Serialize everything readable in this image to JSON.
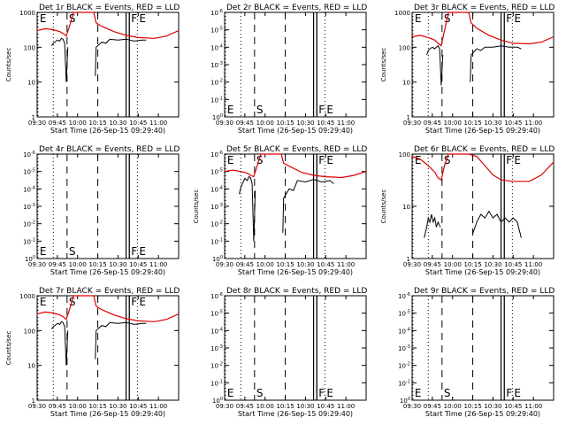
{
  "colors": {
    "events": "#000000",
    "lld": "#dd0000",
    "axes": "#000000",
    "background": "#ffffff"
  },
  "chart_data": [
    {
      "type": "line",
      "scale": "log",
      "ylabel": "Counts/sec",
      "xlabel": "Start Time (26-Sep-15 09:29:40)",
      "title": "Det 1r BLACK = Events, RED = LLD",
      "xlim": [
        9.5,
        11.25
      ],
      "ylim": [
        1,
        1000
      ],
      "x_ticks": [
        "09:30",
        "09:45",
        "10:00",
        "10:15",
        "10:30",
        "10:45",
        "11:00"
      ],
      "y_ticks": [
        "1",
        "10",
        "100",
        "1000"
      ],
      "markers": [
        {
          "label": "E",
          "x": 9.51
        },
        {
          "label": "S",
          "x": 9.87
        },
        {
          "label": "F",
          "x": 10.64
        },
        {
          "label": "E",
          "x": 10.74
        }
      ],
      "series": [
        {
          "color": "red",
          "x": [
            9.5,
            9.6,
            9.7,
            9.78,
            9.82,
            9.86,
            9.9,
            9.95,
            10.05,
            10.2,
            10.23,
            10.3,
            10.45,
            10.6,
            10.75,
            10.95,
            11.1,
            11.25
          ],
          "y": [
            300,
            340,
            320,
            280,
            250,
            210,
            400,
            1000,
            1000,
            1000,
            500,
            400,
            280,
            220,
            190,
            180,
            210,
            300
          ]
        },
        {
          "color": "black",
          "x": [
            9.68,
            9.7,
            9.72,
            9.75,
            9.78,
            9.8,
            9.82,
            9.84,
            9.86,
            9.88
          ],
          "y": [
            110,
            130,
            140,
            160,
            150,
            180,
            170,
            130,
            10,
            100
          ]
        },
        {
          "color": "black",
          "x": [
            10.22,
            10.23,
            10.3,
            10.35,
            10.4,
            10.5,
            10.6,
            10.7,
            10.8,
            10.85
          ],
          "y": [
            15,
            100,
            140,
            130,
            170,
            160,
            170,
            150,
            160,
            160
          ]
        }
      ]
    },
    {
      "type": "line",
      "scale": "log",
      "ylabel": "",
      "xlabel": "Start Time (26-Sep-15 09:29:40)",
      "title": "Det 2r BLACK = Events, RED = LLD",
      "xlim": [
        9.5,
        11.25
      ],
      "ylim": [
        1,
        1000000
      ],
      "x_ticks": [
        "09:30",
        "09:45",
        "10:00",
        "10:15",
        "10:30",
        "10:45",
        "11:00"
      ],
      "y_ticks": [
        "10^0",
        "10^-1",
        "10^-2",
        "10^-3",
        "10^-4",
        "10^-5",
        "10^-6"
      ],
      "markers": [
        {
          "label": "E",
          "x": 9.51
        },
        {
          "label": "S",
          "x": 9.87
        },
        {
          "label": "F",
          "x": 10.64
        },
        {
          "label": "E",
          "x": 10.74
        }
      ],
      "series": []
    },
    {
      "type": "line",
      "scale": "log",
      "ylabel": "Counts/sec",
      "xlabel": "Start Time (26-Sep-15 09:29:40)",
      "title": "Det 3r BLACK = Events, RED = LLD",
      "xlim": [
        9.5,
        11.25
      ],
      "ylim": [
        1,
        1000
      ],
      "x_ticks": [
        "09:30",
        "09:45",
        "10:00",
        "10:15",
        "10:30",
        "10:45",
        "11:00"
      ],
      "y_ticks": [
        "1",
        "10",
        "100",
        "1000"
      ],
      "markers": [
        {
          "label": "E",
          "x": 9.51
        },
        {
          "label": "S",
          "x": 9.87
        },
        {
          "label": "F",
          "x": 10.64
        },
        {
          "label": "E",
          "x": 10.74
        }
      ],
      "series": [
        {
          "color": "red",
          "x": [
            9.5,
            9.6,
            9.7,
            9.78,
            9.82,
            9.86,
            9.9,
            9.95,
            10.05,
            10.2,
            10.23,
            10.3,
            10.45,
            10.6,
            10.75,
            10.95,
            11.1,
            11.25
          ],
          "y": [
            200,
            220,
            190,
            160,
            130,
            110,
            300,
            1000,
            1000,
            1000,
            500,
            350,
            220,
            160,
            130,
            125,
            140,
            200
          ]
        },
        {
          "color": "black",
          "x": [
            9.68,
            9.7,
            9.72,
            9.75,
            9.78,
            9.8,
            9.82,
            9.84,
            9.86,
            9.88
          ],
          "y": [
            60,
            80,
            90,
            100,
            90,
            100,
            110,
            90,
            8,
            60
          ]
        },
        {
          "color": "black",
          "x": [
            10.22,
            10.23,
            10.3,
            10.35,
            10.4,
            10.5,
            10.6,
            10.7,
            10.8,
            10.85
          ],
          "y": [
            10,
            60,
            90,
            80,
            100,
            100,
            110,
            100,
            100,
            90
          ]
        }
      ]
    },
    {
      "type": "line",
      "scale": "log",
      "ylabel": "",
      "xlabel": "Start Time (26-Sep-15 09:29:40)",
      "title": "Det 4r BLACK = Events, RED = LLD",
      "xlim": [
        9.5,
        11.25
      ],
      "ylim": [
        1,
        1000000
      ],
      "x_ticks": [
        "09:30",
        "09:45",
        "10:00",
        "10:15",
        "10:30",
        "10:45",
        "11:00"
      ],
      "y_ticks": [
        "10^0",
        "10^-1",
        "10^-2",
        "10^-3",
        "10^-4",
        "10^-5",
        "10^-6"
      ],
      "markers": [
        {
          "label": "E",
          "x": 9.51
        },
        {
          "label": "S",
          "x": 9.87
        },
        {
          "label": "F",
          "x": 10.64
        },
        {
          "label": "E",
          "x": 10.74
        }
      ],
      "series": []
    },
    {
      "type": "line",
      "scale": "log",
      "ylabel": "Counts/sec",
      "xlabel": "Start Time (26-Sep-15 09:29:40)",
      "title": "Det 5r BLACK = Events, RED = LLD",
      "xlim": [
        9.5,
        11.25
      ],
      "ylim": [
        1,
        1000000
      ],
      "x_ticks": [
        "09:30",
        "09:45",
        "10:00",
        "10:15",
        "10:30",
        "10:45",
        "11:00"
      ],
      "y_ticks": [
        "10^0",
        "10^-1",
        "10^-2",
        "10^-3",
        "10^-4",
        "10^-5",
        "10^-6"
      ],
      "markers": [
        {
          "label": "E",
          "x": 9.51
        },
        {
          "label": "S",
          "x": 9.87
        },
        {
          "label": "F",
          "x": 10.64
        },
        {
          "label": "E",
          "x": 10.74
        }
      ],
      "series": [
        {
          "color": "red",
          "x": [
            9.5,
            9.6,
            9.7,
            9.78,
            9.82,
            9.86,
            9.9,
            9.95,
            10.05,
            10.2,
            10.23,
            10.3,
            10.45,
            10.6,
            10.75,
            10.95,
            11.1,
            11.25
          ],
          "y": [
            100000,
            120000,
            100000,
            80000,
            60000,
            50000,
            200000,
            1000000,
            1000000,
            1000000,
            300000,
            200000,
            90000,
            60000,
            50000,
            45000,
            60000,
            100000
          ]
        },
        {
          "color": "black",
          "x": [
            9.68,
            9.7,
            9.72,
            9.75,
            9.78,
            9.8,
            9.82,
            9.84,
            9.86,
            9.88
          ],
          "y": [
            5000,
            12000,
            20000,
            40000,
            30000,
            50000,
            45000,
            20000,
            10,
            8000
          ]
        },
        {
          "color": "black",
          "x": [
            10.22,
            10.23,
            10.3,
            10.35,
            10.4,
            10.5,
            10.6,
            10.7,
            10.8,
            10.85
          ],
          "y": [
            30,
            3000,
            10000,
            8000,
            30000,
            25000,
            35000,
            25000,
            30000,
            20000
          ]
        }
      ]
    },
    {
      "type": "line",
      "scale": "log",
      "ylabel": "Counts/sec",
      "xlabel": "Start Time (26-Sep-15 09:29:40)",
      "title": "Det 6r BLACK = Events, RED = LLD",
      "xlim": [
        9.5,
        11.25
      ],
      "ylim": [
        1,
        100
      ],
      "x_ticks": [
        "09:30",
        "09:45",
        "10:00",
        "10:15",
        "10:30",
        "10:45",
        "11:00"
      ],
      "y_ticks": [
        "1",
        "10",
        "100"
      ],
      "markers": [
        {
          "label": "E",
          "x": 9.51
        },
        {
          "label": "S",
          "x": 9.87
        },
        {
          "label": "F",
          "x": 10.64
        },
        {
          "label": "E",
          "x": 10.74
        }
      ],
      "series": [
        {
          "color": "red",
          "x": [
            9.5,
            9.6,
            9.7,
            9.78,
            9.82,
            9.86,
            9.9,
            9.95,
            10.05,
            10.2,
            10.3,
            10.4,
            10.5,
            10.6,
            10.75,
            10.95,
            11.1,
            11.25
          ],
          "y": [
            90,
            80,
            60,
            45,
            35,
            32,
            60,
            100,
            100,
            100,
            90,
            60,
            40,
            32,
            30,
            30,
            40,
            70
          ]
        },
        {
          "color": "black",
          "x": [
            9.65,
            9.68,
            9.7,
            9.72,
            9.74,
            9.76,
            9.78,
            9.8,
            9.82,
            9.85
          ],
          "y": [
            2.5,
            4,
            6,
            5,
            7,
            5,
            6,
            4,
            5,
            4
          ]
        },
        {
          "color": "black",
          "x": [
            10.25,
            10.3,
            10.35,
            10.4,
            10.45,
            10.5,
            10.55,
            10.6,
            10.65,
            10.7,
            10.75,
            10.8,
            10.85
          ],
          "y": [
            3,
            5,
            7,
            6,
            8,
            6,
            7,
            5,
            6,
            5,
            6,
            5,
            2.5
          ]
        }
      ]
    },
    {
      "type": "line",
      "scale": "log",
      "ylabel": "Counts/sec",
      "xlabel": "Start Time (26-Sep-15 09:29:40)",
      "title": "Det 7r BLACK = Events, RED = LLD",
      "xlim": [
        9.5,
        11.25
      ],
      "ylim": [
        1,
        1000
      ],
      "x_ticks": [
        "09:30",
        "09:45",
        "10:00",
        "10:15",
        "10:30",
        "10:45",
        "11:00"
      ],
      "y_ticks": [
        "1",
        "10",
        "100",
        "1000"
      ],
      "markers": [
        {
          "label": "E",
          "x": 9.51
        },
        {
          "label": "S",
          "x": 9.87
        },
        {
          "label": "F",
          "x": 10.64
        },
        {
          "label": "E",
          "x": 10.74
        }
      ],
      "series": [
        {
          "color": "red",
          "x": [
            9.5,
            9.6,
            9.7,
            9.78,
            9.82,
            9.86,
            9.9,
            9.95,
            10.05,
            10.2,
            10.23,
            10.3,
            10.45,
            10.6,
            10.75,
            10.95,
            11.1,
            11.25
          ],
          "y": [
            300,
            340,
            320,
            280,
            250,
            210,
            400,
            1000,
            1000,
            1000,
            500,
            400,
            280,
            220,
            190,
            180,
            210,
            300
          ]
        },
        {
          "color": "black",
          "x": [
            9.68,
            9.7,
            9.72,
            9.75,
            9.78,
            9.8,
            9.82,
            9.84,
            9.86,
            9.88
          ],
          "y": [
            110,
            130,
            140,
            160,
            150,
            180,
            170,
            130,
            10,
            100
          ]
        },
        {
          "color": "black",
          "x": [
            10.22,
            10.23,
            10.3,
            10.35,
            10.4,
            10.5,
            10.6,
            10.7,
            10.8,
            10.85
          ],
          "y": [
            15,
            100,
            140,
            130,
            170,
            160,
            170,
            150,
            160,
            160
          ]
        }
      ]
    },
    {
      "type": "line",
      "scale": "log",
      "ylabel": "",
      "xlabel": "Start Time (26-Sep-15 09:29:40)",
      "title": "Det 8r BLACK = Events, RED = LLD",
      "xlim": [
        9.5,
        11.25
      ],
      "ylim": [
        1,
        1000000
      ],
      "x_ticks": [
        "09:30",
        "09:45",
        "10:00",
        "10:15",
        "10:30",
        "10:45",
        "11:00"
      ],
      "y_ticks": [
        "10^0",
        "10^-1",
        "10^-2",
        "10^-3",
        "10^-4",
        "10^-5",
        "10^-6"
      ],
      "markers": [
        {
          "label": "E",
          "x": 9.51
        },
        {
          "label": "S",
          "x": 9.87
        },
        {
          "label": "F",
          "x": 10.64
        },
        {
          "label": "E",
          "x": 10.74
        }
      ],
      "series": []
    },
    {
      "type": "line",
      "scale": "log",
      "ylabel": "",
      "xlabel": "Start Time (26-Sep-15 09:29:40)",
      "title": "Det 9r BLACK = Events, RED = LLD",
      "xlim": [
        9.5,
        11.25
      ],
      "ylim": [
        1,
        1000000
      ],
      "x_ticks": [
        "09:30",
        "09:45",
        "10:00",
        "10:15",
        "10:30",
        "10:45",
        "11:00"
      ],
      "y_ticks": [
        "10^0",
        "10^-1",
        "10^-2",
        "10^-3",
        "10^-4",
        "10^-5",
        "10^-6"
      ],
      "markers": [
        {
          "label": "E",
          "x": 9.51
        },
        {
          "label": "S",
          "x": 9.87
        },
        {
          "label": "F",
          "x": 10.64
        },
        {
          "label": "E",
          "x": 10.74
        }
      ],
      "series": []
    }
  ]
}
